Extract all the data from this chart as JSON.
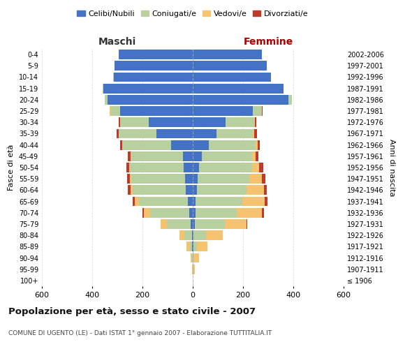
{
  "age_groups": [
    "100+",
    "95-99",
    "90-94",
    "85-89",
    "80-84",
    "75-79",
    "70-74",
    "65-69",
    "60-64",
    "55-59",
    "50-54",
    "45-49",
    "40-44",
    "35-39",
    "30-34",
    "25-29",
    "20-24",
    "15-19",
    "10-14",
    "5-9",
    "0-4"
  ],
  "birth_years": [
    "≤ 1906",
    "1907-1911",
    "1912-1916",
    "1917-1921",
    "1922-1926",
    "1927-1931",
    "1932-1936",
    "1937-1941",
    "1942-1946",
    "1947-1951",
    "1952-1956",
    "1957-1961",
    "1962-1966",
    "1967-1971",
    "1972-1976",
    "1977-1981",
    "1982-1986",
    "1987-1991",
    "1992-1996",
    "1997-2001",
    "2002-2006"
  ],
  "colors": {
    "celibe": "#4472c4",
    "coniugato": "#b8cfa0",
    "vedovo": "#f5c36e",
    "divorziato": "#c0392b"
  },
  "maschi": {
    "celibe": [
      0,
      0,
      1,
      2,
      4,
      8,
      14,
      20,
      28,
      30,
      35,
      40,
      85,
      145,
      175,
      290,
      340,
      355,
      315,
      310,
      295
    ],
    "coniugato": [
      0,
      1,
      3,
      8,
      30,
      95,
      155,
      195,
      210,
      215,
      215,
      205,
      195,
      150,
      115,
      35,
      10,
      2,
      1,
      0,
      0
    ],
    "vedovo": [
      0,
      1,
      5,
      15,
      20,
      25,
      25,
      15,
      10,
      5,
      3,
      2,
      1,
      0,
      0,
      5,
      0,
      0,
      0,
      0,
      0
    ],
    "divorziato": [
      0,
      0,
      0,
      0,
      0,
      0,
      5,
      8,
      10,
      12,
      12,
      10,
      8,
      8,
      5,
      0,
      0,
      0,
      0,
      0,
      0
    ]
  },
  "femmine": {
    "nubile": [
      0,
      0,
      1,
      2,
      4,
      8,
      10,
      12,
      18,
      20,
      25,
      35,
      65,
      95,
      130,
      240,
      380,
      360,
      310,
      295,
      275
    ],
    "coniugata": [
      0,
      2,
      5,
      15,
      50,
      120,
      165,
      185,
      195,
      205,
      210,
      200,
      185,
      145,
      115,
      35,
      15,
      2,
      1,
      0,
      0
    ],
    "vedova": [
      0,
      5,
      20,
      40,
      65,
      85,
      100,
      90,
      70,
      50,
      30,
      15,
      8,
      5,
      2,
      0,
      0,
      0,
      0,
      0,
      0
    ],
    "divorziata": [
      0,
      0,
      0,
      0,
      0,
      5,
      8,
      10,
      12,
      15,
      15,
      12,
      10,
      10,
      5,
      2,
      0,
      0,
      0,
      0,
      0
    ]
  },
  "title": "Popolazione per età, sesso e stato civile - 2007",
  "subtitle": "COMUNE DI UGENTO (LE) - Dati ISTAT 1° gennaio 2007 - Elaborazione TUTTITALIA.IT",
  "xlabel_left": "Maschi",
  "xlabel_right": "Femmine",
  "ylabel_left": "Fasce di età",
  "ylabel_right": "Anni di nascita",
  "xlim": 600,
  "bg_color": "#ffffff",
  "grid_color": "#cccccc",
  "legend_labels": [
    "Celibi/Nubili",
    "Coniugati/e",
    "Vedovi/e",
    "Divorziati/e"
  ]
}
